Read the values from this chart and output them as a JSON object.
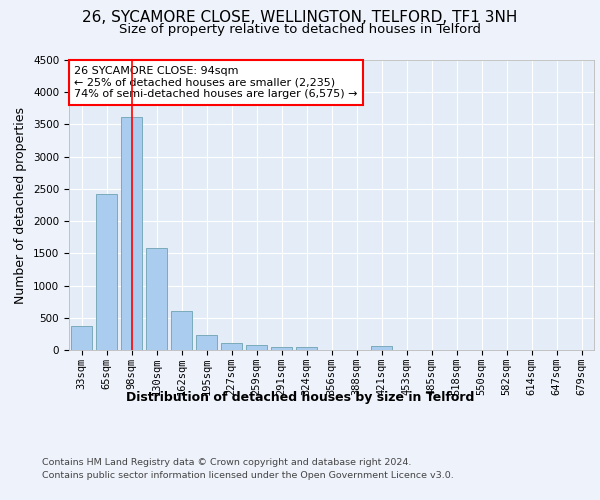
{
  "title": "26, SYCAMORE CLOSE, WELLINGTON, TELFORD, TF1 3NH",
  "subtitle": "Size of property relative to detached houses in Telford",
  "xlabel": "Distribution of detached houses by size in Telford",
  "ylabel": "Number of detached properties",
  "categories": [
    "33sqm",
    "65sqm",
    "98sqm",
    "130sqm",
    "162sqm",
    "195sqm",
    "227sqm",
    "259sqm",
    "291sqm",
    "324sqm",
    "356sqm",
    "388sqm",
    "421sqm",
    "453sqm",
    "485sqm",
    "518sqm",
    "550sqm",
    "582sqm",
    "614sqm",
    "647sqm",
    "679sqm"
  ],
  "values": [
    370,
    2420,
    3620,
    1580,
    600,
    230,
    110,
    70,
    50,
    40,
    0,
    0,
    60,
    0,
    0,
    0,
    0,
    0,
    0,
    0,
    0
  ],
  "bar_color": "#aaccee",
  "bar_edge_color": "#7aaabb",
  "ylim": [
    0,
    4500
  ],
  "yticks": [
    0,
    500,
    1000,
    1500,
    2000,
    2500,
    3000,
    3500,
    4000,
    4500
  ],
  "red_line_x": 2,
  "annotation_title": "26 SYCAMORE CLOSE: 94sqm",
  "annotation_line1": "← 25% of detached houses are smaller (2,235)",
  "annotation_line2": "74% of semi-detached houses are larger (6,575) →",
  "footer_line1": "Contains HM Land Registry data © Crown copyright and database right 2024.",
  "footer_line2": "Contains public sector information licensed under the Open Government Licence v3.0.",
  "background_color": "#eef2fb",
  "plot_bg_color": "#e4ecf7",
  "grid_color": "#ffffff",
  "title_fontsize": 11,
  "subtitle_fontsize": 9.5,
  "axis_label_fontsize": 9,
  "tick_fontsize": 7.5,
  "footer_fontsize": 6.8,
  "annotation_fontsize": 8
}
